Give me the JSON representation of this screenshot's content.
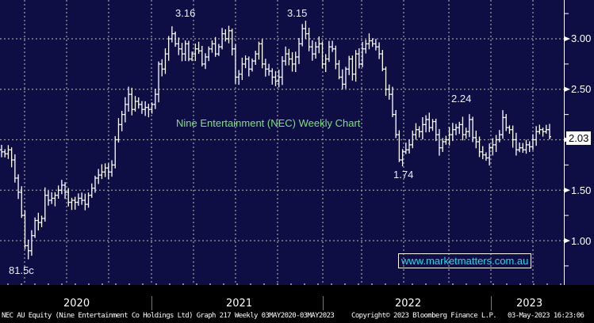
{
  "chart_data": {
    "type": "ohlc-bar",
    "title": "Nine Entertainment (NEC) Weekly Chart",
    "ylim": [
      0.58,
      3.38
    ],
    "y_ticks": [
      "3.00",
      "2.50",
      "1.50",
      "1.00"
    ],
    "y_tick_values": [
      3.0,
      2.5,
      1.5,
      1.0
    ],
    "x_labels": [
      "2020",
      "2021",
      "2022",
      "2023"
    ],
    "last_price": "2.03",
    "grid": true,
    "colors": {
      "background": "#0e0e44",
      "bars": "#ffffff",
      "title": "#7fe07f",
      "watermark": "#22d8ee",
      "grid": "#9a9a9a"
    },
    "annotations": [
      "3.16",
      "3.15",
      "2.24",
      "1.74",
      "81.5c"
    ],
    "watermark": "www.marketmatters.com.au",
    "weekly_close": {
      "2020": [
        1.88,
        1.86,
        1.9,
        1.8,
        1.62,
        1.48,
        1.25,
        0.95,
        0.9,
        1.05,
        1.2,
        1.18,
        1.22,
        1.45,
        1.4,
        1.42,
        1.45,
        1.5,
        1.55,
        1.48,
        1.38,
        1.4,
        1.38,
        1.42,
        1.4,
        1.36,
        1.45,
        1.52,
        1.62,
        1.65,
        1.68,
        1.72,
        1.68,
        1.75,
        2.0,
        2.15,
        2.25,
        2.35,
        2.45,
        2.3,
        2.38,
        2.35,
        2.3,
        2.32,
        2.3,
        2.35
      ],
      "2021": [
        2.45,
        2.75,
        2.7,
        2.85,
        3.0,
        3.05,
        2.95,
        2.9,
        2.85,
        2.95,
        2.8,
        2.85,
        2.9,
        2.88,
        2.75,
        2.82,
        2.9,
        2.95,
        2.85,
        2.92,
        3.05,
        3.0,
        3.08,
        2.9,
        2.62,
        2.65,
        2.75,
        2.8,
        2.7,
        2.78,
        2.85,
        2.95,
        2.75,
        2.7,
        2.68,
        2.62,
        2.58,
        2.62,
        2.78,
        2.85,
        2.8,
        2.75,
        2.82,
        2.95,
        3.1,
        3.05,
        2.92,
        2.85,
        2.92,
        2.95,
        2.75,
        2.8
      ],
      "2022": [
        2.92,
        2.9,
        2.75,
        2.62,
        2.55,
        2.7,
        2.8,
        2.65,
        2.85,
        2.75,
        2.9,
        2.95,
        2.98,
        2.95,
        2.92,
        2.85,
        2.7,
        2.5,
        2.45,
        2.25,
        2.05,
        1.8,
        1.88,
        1.9,
        1.95,
        2.05,
        2.1,
        2.08,
        2.15,
        2.2,
        2.12,
        2.18,
        2.05,
        1.92,
        1.98,
        2.0,
        2.05,
        2.1,
        2.12,
        2.15,
        2.05,
        2.08,
        2.2,
        2.02,
        1.98,
        1.88,
        1.85,
        1.82,
        1.92,
        1.95,
        2.0
      ],
      "2023": [
        2.05,
        2.22,
        2.12,
        2.1,
        2.0,
        1.9,
        1.92,
        1.9,
        1.95,
        1.93,
        2.0,
        2.08,
        2.1,
        2.08,
        2.1,
        2.03
      ]
    }
  },
  "footer": {
    "security": "NEC AU Equity (Nine Entertainment Co Holdings Ltd) Graph 217  Weekly 03MAY2020-03MAY2023",
    "copyright": "Copyright© 2023 Bloomberg Finance L.P.",
    "timestamp": "03-May-2023 16:23:06"
  }
}
